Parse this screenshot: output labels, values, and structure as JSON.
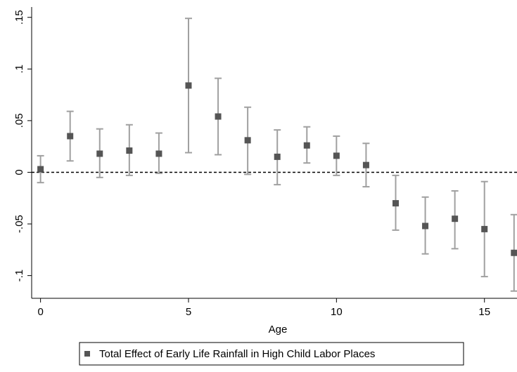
{
  "chart_data": {
    "type": "errorbar",
    "x_label": "Age",
    "x": [
      0,
      1,
      2,
      3,
      4,
      5,
      6,
      7,
      8,
      9,
      10,
      11,
      12,
      13,
      14,
      15,
      16
    ],
    "series": [
      {
        "name": "Total Effect of Early Life Rainfall in High Child Labor Places",
        "color": "#555555",
        "bar_color": "#a0a0a0",
        "values": [
          0.003,
          0.035,
          0.018,
          0.021,
          0.018,
          0.084,
          0.054,
          0.031,
          0.015,
          0.026,
          0.016,
          0.007,
          -0.03,
          -0.052,
          -0.045,
          -0.055,
          -0.078
        ],
        "lower": [
          -0.01,
          0.011,
          -0.005,
          -0.003,
          -0.001,
          0.019,
          0.017,
          -0.002,
          -0.012,
          0.009,
          -0.003,
          -0.014,
          -0.056,
          -0.079,
          -0.074,
          -0.101,
          -0.115
        ],
        "upper": [
          0.016,
          0.059,
          0.042,
          0.046,
          0.038,
          0.149,
          0.091,
          0.063,
          0.041,
          0.044,
          0.035,
          0.028,
          -0.003,
          -0.024,
          -0.018,
          -0.009,
          -0.041
        ]
      }
    ],
    "xlim": [
      -0.3,
      16.1
    ],
    "ylim": [
      -0.122,
      0.16
    ],
    "xticks": [
      0,
      5,
      10,
      15
    ],
    "yticks": [
      {
        "value": 0.15,
        "label": ".15"
      },
      {
        "value": 0.1,
        "label": ".1"
      },
      {
        "value": 0.05,
        "label": ".05"
      },
      0,
      {
        "value": -0.05,
        "label": "-.05"
      },
      {
        "value": -0.1,
        "label": "-.1"
      }
    ],
    "reference_line": 0
  }
}
